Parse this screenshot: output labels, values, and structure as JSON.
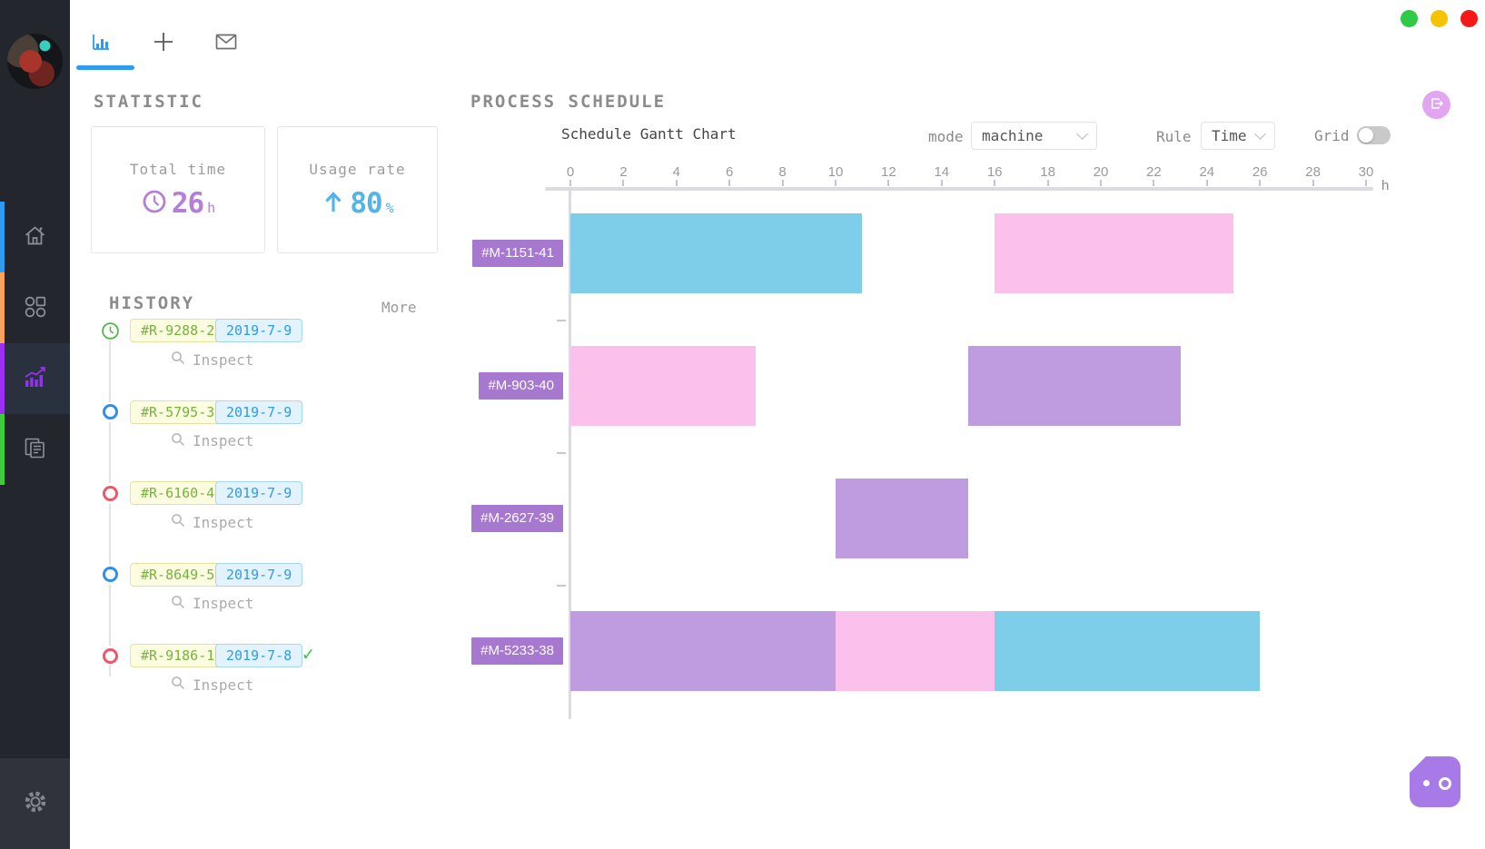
{
  "window": {
    "traffic_lights": [
      {
        "name": "green",
        "color": "#2FCA46"
      },
      {
        "name": "yellow",
        "color": "#F5C400"
      },
      {
        "name": "red",
        "color": "#F51818"
      }
    ]
  },
  "sidebar": {
    "items": [
      {
        "id": "home",
        "strip_color": "#2E9BF0",
        "active": false
      },
      {
        "id": "apps",
        "strip_color": "#F7A35C",
        "active": false
      },
      {
        "id": "analytics",
        "strip_color": "#9B30F0",
        "active": true,
        "icon_color": "#9333EA"
      },
      {
        "id": "documents",
        "strip_color": "#3ECC3E",
        "active": false
      }
    ]
  },
  "tabs": [
    {
      "id": "chart",
      "active": true,
      "accent": "#2E9BF0"
    },
    {
      "id": "new",
      "active": false
    },
    {
      "id": "mail",
      "active": false
    }
  ],
  "statistic": {
    "title": "STATISTIC",
    "cards": [
      {
        "label": "Total time",
        "value": "26",
        "unit": "h",
        "accent": "#B57FD8",
        "icon": "clock-icon"
      },
      {
        "label": "Usage rate",
        "value": "80",
        "unit": "%",
        "accent": "#54B4EA",
        "icon": "arrow-up-icon"
      }
    ]
  },
  "history": {
    "title": "HISTORY",
    "more_label": "More",
    "inspect_label": "Inspect",
    "items": [
      {
        "id": "#R-9288-2",
        "date": "2019-7-9",
        "marker": "clock-green",
        "done": false
      },
      {
        "id": "#R-5795-3",
        "date": "2019-7-9",
        "marker": "ring-blue",
        "done": false
      },
      {
        "id": "#R-6160-4",
        "date": "2019-7-9",
        "marker": "ring-red",
        "done": false
      },
      {
        "id": "#R-8649-5",
        "date": "2019-7-9",
        "marker": "ring-blue",
        "done": false
      },
      {
        "id": "#R-9186-1",
        "date": "2019-7-8",
        "marker": "ring-red",
        "done": true
      }
    ]
  },
  "schedule": {
    "section_title": "PROCESS SCHEDULE",
    "mode_label": "mode",
    "mode_value": "machine",
    "rule_label": "Rule",
    "rule_value": "Time",
    "grid_label": "Grid",
    "grid_on": false
  },
  "chart_data": {
    "type": "bar",
    "subtype": "gantt-horizontal",
    "title": "Schedule Gantt Chart",
    "x_axis": {
      "label": "h",
      "min": 0,
      "max": 30,
      "tick_step": 2,
      "tick_labels": [
        0,
        2,
        4,
        6,
        8,
        10,
        12,
        14,
        16,
        18,
        20,
        22,
        24,
        26,
        28,
        30
      ]
    },
    "grid": false,
    "legend_position": "none",
    "rows": [
      {
        "label": "#M-1151-41",
        "segments": [
          {
            "start": 0,
            "end": 11,
            "color": "#7ECDE9"
          },
          {
            "start": 16,
            "end": 25,
            "color": "#FCC0ED"
          }
        ]
      },
      {
        "label": "#M-903-40",
        "segments": [
          {
            "start": 0,
            "end": 7,
            "color": "#FCC0ED"
          },
          {
            "start": 15,
            "end": 23,
            "color": "#BF9CDF"
          }
        ]
      },
      {
        "label": "#M-2627-39",
        "segments": [
          {
            "start": 10,
            "end": 15,
            "color": "#BF9CDF"
          }
        ]
      },
      {
        "label": "#M-5233-38",
        "segments": [
          {
            "start": 0,
            "end": 10,
            "color": "#BF9CDF"
          },
          {
            "start": 10,
            "end": 16,
            "color": "#FCC0ED"
          },
          {
            "start": 16,
            "end": 26,
            "color": "#7ECDE9"
          }
        ]
      }
    ],
    "palette": {
      "skyblue": "#7ECDE9",
      "pink": "#FCC0ED",
      "purple": "#BF9CDF",
      "row_label_bg": "#A678D0"
    }
  }
}
